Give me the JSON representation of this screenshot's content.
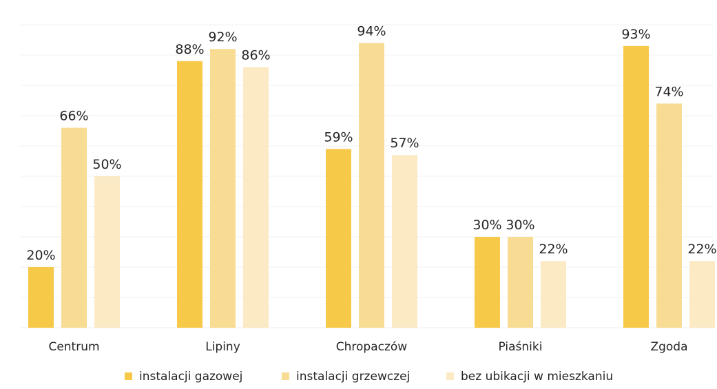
{
  "chart_data": {
    "type": "bar",
    "title": "",
    "xlabel": "",
    "ylabel": "",
    "ylim": [
      0,
      100
    ],
    "grid": true,
    "legend_position": "bottom",
    "categories": [
      "Centrum",
      "Lipiny",
      "Chropaczów",
      "Piaśniki",
      "Zgoda"
    ],
    "series": [
      {
        "name": "instalacji gazowej",
        "color": "#f7c948",
        "values": [
          20,
          88,
          59,
          30,
          93
        ],
        "labels": [
          "20%",
          "88%",
          "59%",
          "30%",
          "93%"
        ]
      },
      {
        "name": "instalacji grzewczej",
        "color": "#f8dc94",
        "values": [
          66,
          92,
          94,
          30,
          74
        ],
        "labels": [
          "66%",
          "92%",
          "94%",
          "30%",
          "74%"
        ]
      },
      {
        "name": "bez ubikacji w mieszkaniu",
        "color": "#fbeac3",
        "values": [
          50,
          86,
          57,
          22,
          22
        ],
        "labels": [
          "50%",
          "86%",
          "57%",
          "22%",
          "22%"
        ]
      }
    ]
  }
}
